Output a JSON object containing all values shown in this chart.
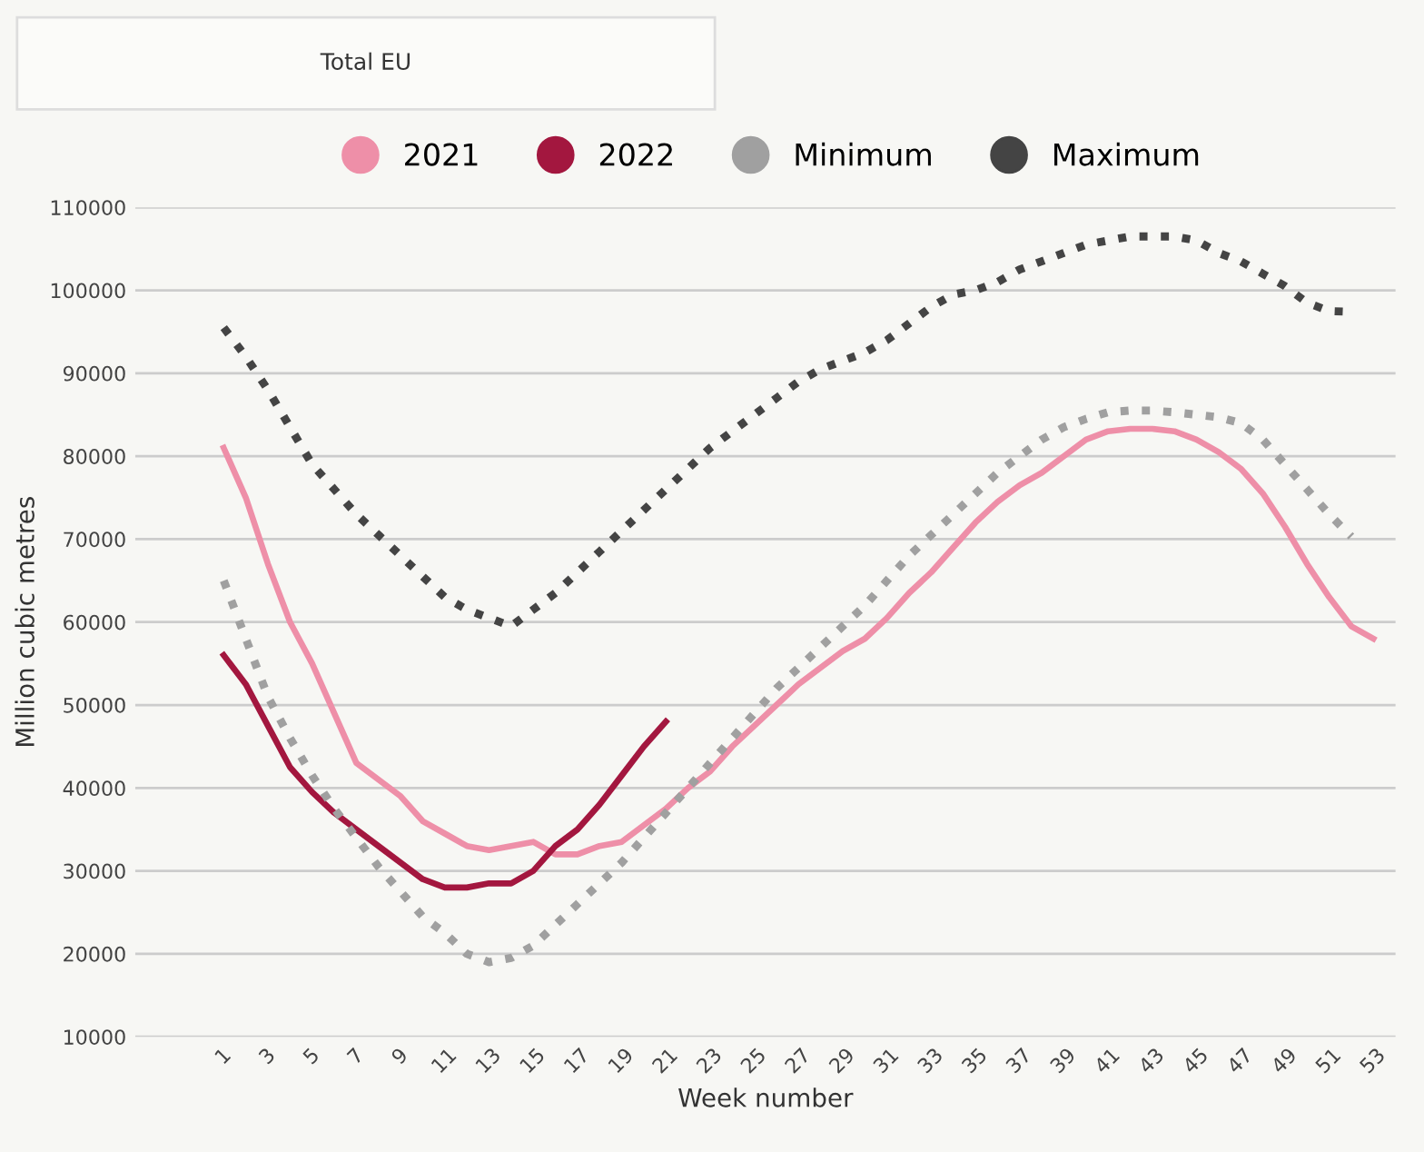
{
  "chart_data": {
    "type": "line",
    "annotations": [
      "Total EU"
    ],
    "xlabel": "Week number",
    "ylabel": "Million cubic metres",
    "xlim": [
      -3,
      54
    ],
    "xticks": [
      1,
      3,
      5,
      7,
      9,
      11,
      13,
      15,
      17,
      19,
      21,
      23,
      25,
      27,
      29,
      31,
      33,
      35,
      37,
      39,
      41,
      43,
      45,
      47,
      49,
      51,
      53
    ],
    "ylim": [
      10000,
      110000
    ],
    "yticks": [
      10000,
      20000,
      30000,
      40000,
      50000,
      60000,
      70000,
      80000,
      90000,
      100000,
      110000
    ],
    "grid": "y",
    "legend": "top",
    "series": [
      {
        "name": "2021",
        "color": "#ee8fa8",
        "line_style": "solid",
        "x": [
          1,
          2,
          3,
          4,
          5,
          6,
          7,
          8,
          9,
          10,
          11,
          12,
          13,
          14,
          15,
          16,
          17,
          18,
          19,
          20,
          21,
          22,
          23,
          24,
          25,
          26,
          27,
          28,
          29,
          30,
          31,
          32,
          33,
          34,
          35,
          36,
          37,
          38,
          39,
          40,
          41,
          42,
          43,
          44,
          45,
          46,
          47,
          48,
          49,
          50,
          51,
          52,
          53
        ],
        "values": [
          81000,
          75000,
          67000,
          60000,
          55000,
          49000,
          43000,
          41000,
          39000,
          36000,
          34500,
          33000,
          32500,
          33000,
          33500,
          32000,
          32000,
          33000,
          33500,
          35500,
          37500,
          40000,
          42000,
          45000,
          47500,
          50000,
          52500,
          54500,
          56500,
          58000,
          60500,
          63500,
          66000,
          69000,
          72000,
          74500,
          76500,
          78000,
          80000,
          82000,
          83000,
          83300,
          83300,
          83000,
          82000,
          80500,
          78500,
          75500,
          71500,
          67000,
          63000,
          59500,
          58000
        ]
      },
      {
        "name": "2022",
        "color": "#a3173f",
        "line_style": "solid",
        "x": [
          1,
          2,
          3,
          4,
          5,
          6,
          7,
          8,
          9,
          10,
          11,
          12,
          13,
          14,
          15,
          16,
          17,
          18,
          19,
          20,
          21
        ],
        "values": [
          56000,
          52500,
          47500,
          42500,
          39500,
          37000,
          35000,
          33000,
          31000,
          29000,
          28000,
          28000,
          28500,
          28500,
          30000,
          33000,
          35000,
          38000,
          41500,
          45000,
          48000
        ]
      },
      {
        "name": "Minimum",
        "color": "#a0a0a0",
        "line_style": "dotted",
        "x": [
          1,
          2,
          3,
          4,
          5,
          6,
          7,
          8,
          9,
          10,
          11,
          12,
          13,
          14,
          15,
          16,
          17,
          18,
          19,
          20,
          21,
          22,
          23,
          24,
          25,
          26,
          27,
          28,
          29,
          30,
          31,
          32,
          33,
          34,
          35,
          36,
          37,
          38,
          39,
          40,
          41,
          42,
          43,
          44,
          45,
          46,
          47,
          48,
          49,
          50,
          51,
          52
        ],
        "values": [
          65000,
          58000,
          51000,
          46000,
          41500,
          37500,
          34000,
          30500,
          27500,
          24500,
          22500,
          20000,
          19000,
          19500,
          21000,
          23500,
          26000,
          28500,
          31000,
          34000,
          37000,
          40000,
          43000,
          46000,
          49000,
          52000,
          54500,
          57000,
          59500,
          62000,
          65000,
          68000,
          70500,
          73000,
          75500,
          78000,
          80000,
          82000,
          83500,
          84500,
          85300,
          85500,
          85500,
          85300,
          85000,
          84700,
          84000,
          82000,
          79000,
          76000,
          73000,
          70300
        ]
      },
      {
        "name": "Maximum",
        "color": "#444444",
        "line_style": "dotted",
        "x": [
          1,
          2,
          3,
          4,
          5,
          6,
          7,
          8,
          9,
          10,
          11,
          12,
          13,
          14,
          15,
          16,
          17,
          18,
          19,
          20,
          21,
          22,
          23,
          24,
          25,
          26,
          27,
          28,
          29,
          30,
          31,
          32,
          33,
          34,
          35,
          36,
          37,
          38,
          39,
          40,
          41,
          42,
          43,
          44,
          45,
          46,
          47,
          48,
          49,
          50,
          51,
          52
        ],
        "values": [
          95500,
          92000,
          88000,
          83500,
          79000,
          76000,
          73000,
          70500,
          68000,
          65500,
          63000,
          61500,
          60500,
          59500,
          61500,
          63500,
          66000,
          68500,
          71000,
          73500,
          76000,
          78500,
          81000,
          83000,
          85000,
          87000,
          89000,
          90500,
          91500,
          92500,
          94000,
          96000,
          98000,
          99500,
          100000,
          101000,
          102500,
          103500,
          104500,
          105500,
          106000,
          106500,
          106500,
          106500,
          106000,
          104500,
          103500,
          102000,
          100500,
          98500,
          97500,
          97400
        ]
      }
    ]
  }
}
